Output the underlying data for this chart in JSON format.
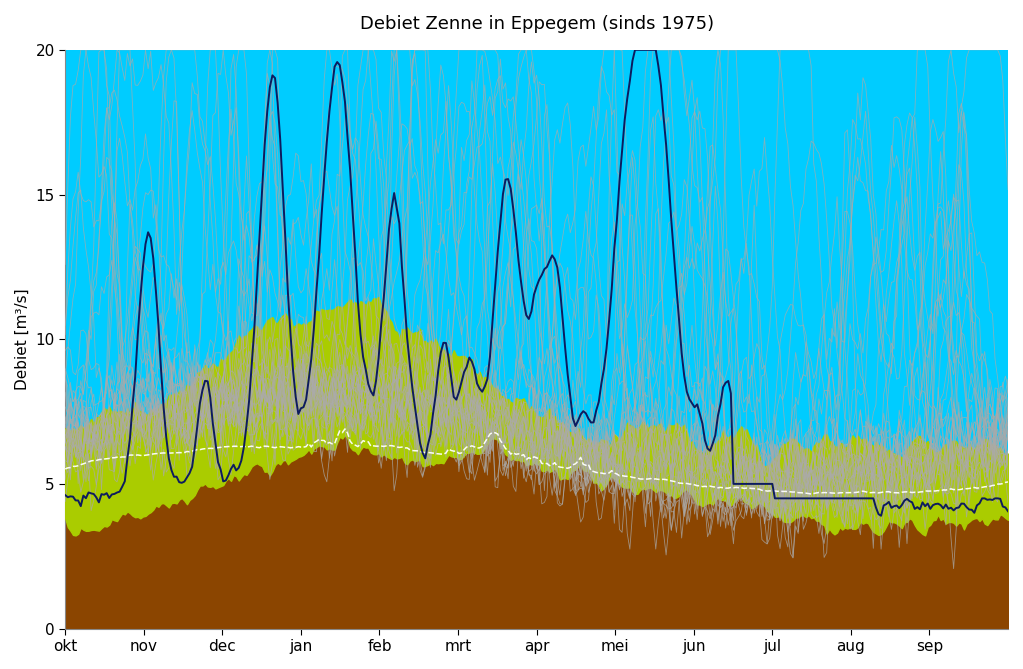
{
  "title": "Debiet Zenne in Eppegem (sinds 1975)",
  "ylabel": "Debiet [m³/s]",
  "xlabels": [
    "okt",
    "nov",
    "dec",
    "jan",
    "feb",
    "mrt",
    "apr",
    "mei",
    "jun",
    "jul",
    "aug",
    "sep"
  ],
  "ylim": [
    0,
    20
  ],
  "yticks": [
    0,
    5,
    10,
    15,
    20
  ],
  "color_cyan": "#00CCFF",
  "color_yellow_green": "#AACC00",
  "color_brown": "#8B4500",
  "color_dark_navy": "#0D1B5E",
  "color_gray": "#AAAAAA",
  "color_white_line": "#FFFFFF",
  "background": "#FFFFFF",
  "n_days": 365
}
